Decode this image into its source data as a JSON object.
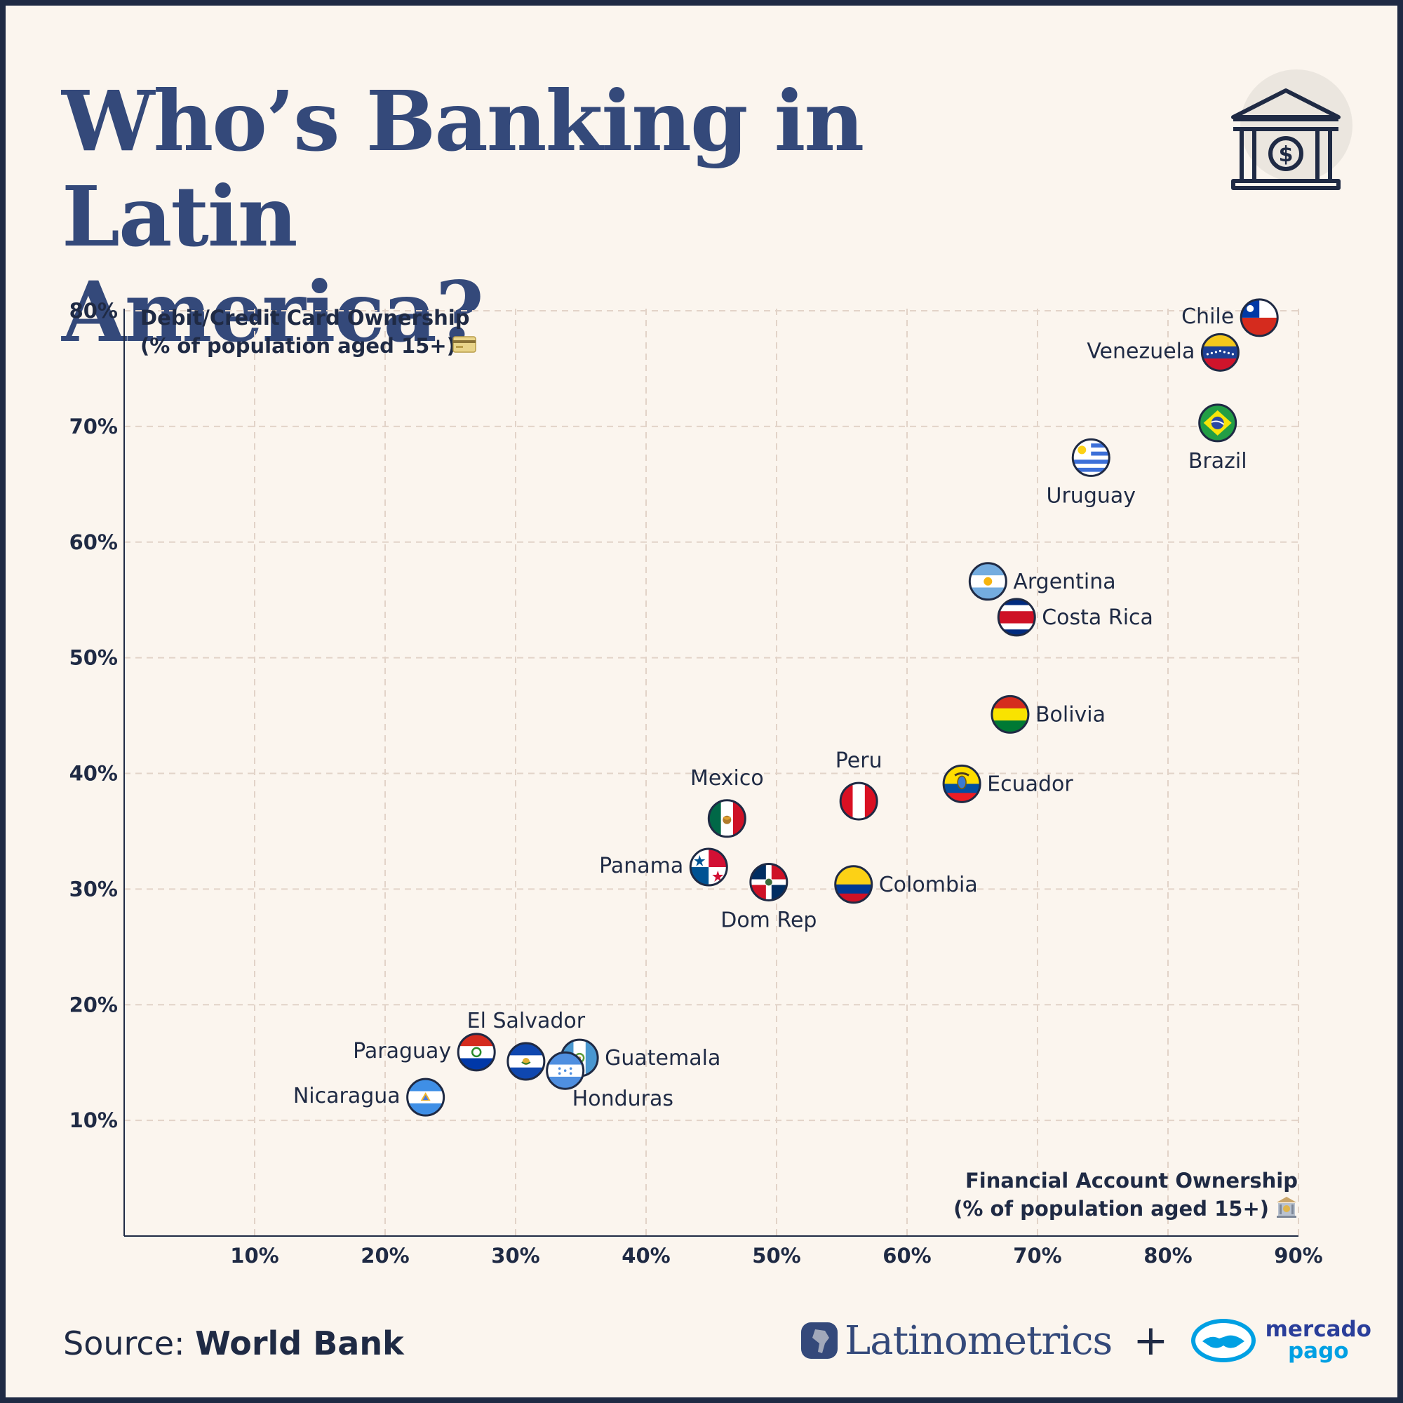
{
  "title": "Who’s Banking in Latin\nAmerica?",
  "footer": {
    "source_prefix": "Source: ",
    "source_name": "World Bank",
    "brand_name": "Latinometrics",
    "plus": "+",
    "partner_line1": "mercado",
    "partner_line2": "pago"
  },
  "icons": {
    "header": "bank-building-dollar-icon",
    "y_axis_emoji": "credit-card-icon",
    "x_axis_emoji": "bank-icon"
  },
  "colors": {
    "background": "#fbf5ee",
    "border": "#1f2a44",
    "title": "#34497a",
    "grid": "#e2d3c8",
    "text": "#1f2a44"
  },
  "chart_data": {
    "type": "scatter",
    "ylabel_line1": "Debit/Credit Card Ownership",
    "ylabel_line2": "(% of population aged 15+)",
    "xlabel_line1": "Financial Account Ownership",
    "xlabel_line2": "(% of population aged 15+)",
    "xlim": [
      0,
      90
    ],
    "ylim": [
      0,
      80
    ],
    "x_ticks": [
      "10%",
      "20%",
      "30%",
      "40%",
      "50%",
      "60%",
      "70%",
      "80%",
      "90%"
    ],
    "y_ticks": [
      "10%",
      "20%",
      "30%",
      "40%",
      "50%",
      "60%",
      "70%",
      "80%"
    ],
    "grid": true,
    "points": [
      {
        "country": "Chile",
        "x": 87.0,
        "y": 79.4,
        "flag": "chile",
        "label_pos": "left"
      },
      {
        "country": "Venezuela",
        "x": 84.0,
        "y": 76.4,
        "flag": "venezuela",
        "label_pos": "left"
      },
      {
        "country": "Brazil",
        "x": 83.8,
        "y": 70.3,
        "flag": "brazil",
        "label_pos": "below"
      },
      {
        "country": "Uruguay",
        "x": 74.1,
        "y": 67.3,
        "flag": "uruguay",
        "label_pos": "below"
      },
      {
        "country": "Argentina",
        "x": 66.2,
        "y": 56.6,
        "flag": "argentina",
        "label_pos": "right"
      },
      {
        "country": "Costa Rica",
        "x": 68.4,
        "y": 53.5,
        "flag": "costarica",
        "label_pos": "right"
      },
      {
        "country": "Bolivia",
        "x": 67.9,
        "y": 45.1,
        "flag": "bolivia",
        "label_pos": "right"
      },
      {
        "country": "Ecuador",
        "x": 64.2,
        "y": 39.1,
        "flag": "ecuador",
        "label_pos": "right"
      },
      {
        "country": "Peru",
        "x": 56.3,
        "y": 37.6,
        "flag": "peru",
        "label_pos": "above"
      },
      {
        "country": "Mexico",
        "x": 46.2,
        "y": 36.1,
        "flag": "mexico",
        "label_pos": "above"
      },
      {
        "country": "Panama",
        "x": 44.8,
        "y": 31.9,
        "flag": "panama",
        "label_pos": "left"
      },
      {
        "country": "Dom Rep",
        "x": 49.4,
        "y": 30.6,
        "flag": "domrep",
        "label_pos": "below"
      },
      {
        "country": "Colombia",
        "x": 55.9,
        "y": 30.4,
        "flag": "colombia",
        "label_pos": "right"
      },
      {
        "country": "El Salvador",
        "x": 30.8,
        "y": 15.1,
        "flag": "elsalvador",
        "label_pos": "above"
      },
      {
        "country": "Paraguay",
        "x": 27.0,
        "y": 15.9,
        "flag": "paraguay",
        "label_pos": "left"
      },
      {
        "country": "Guatemala",
        "x": 34.9,
        "y": 15.4,
        "flag": "guatemala",
        "label_pos": "right"
      },
      {
        "country": "Honduras",
        "x": 33.8,
        "y": 14.3,
        "flag": "honduras",
        "label_pos": "below-right"
      },
      {
        "country": "Nicaragua",
        "x": 23.1,
        "y": 12.0,
        "flag": "nicaragua",
        "label_pos": "left"
      }
    ]
  }
}
